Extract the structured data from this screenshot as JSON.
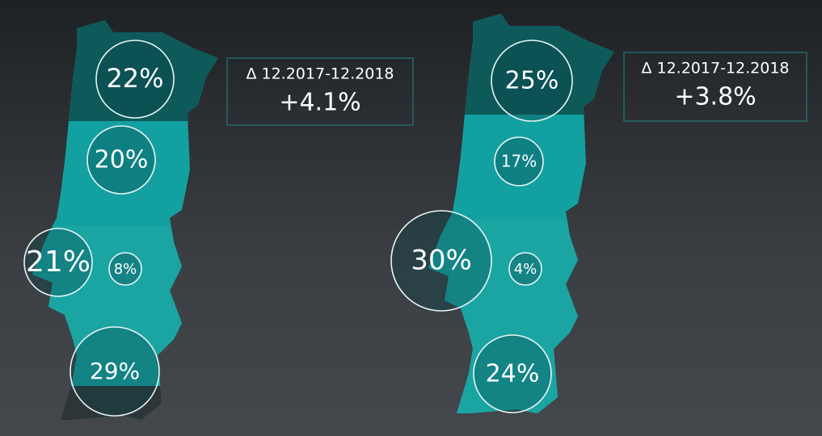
{
  "maps": [
    {
      "period": "Δ 12.2017-12.2018",
      "change": "+4.1%",
      "regions": [
        "22%",
        "20%",
        "21%",
        "8%",
        "29%"
      ]
    },
    {
      "period": "Δ 12.2017-12.2018",
      "change": "+3.8%",
      "regions": [
        "25%",
        "17%",
        "30%",
        "4%",
        "24%"
      ]
    }
  ]
}
